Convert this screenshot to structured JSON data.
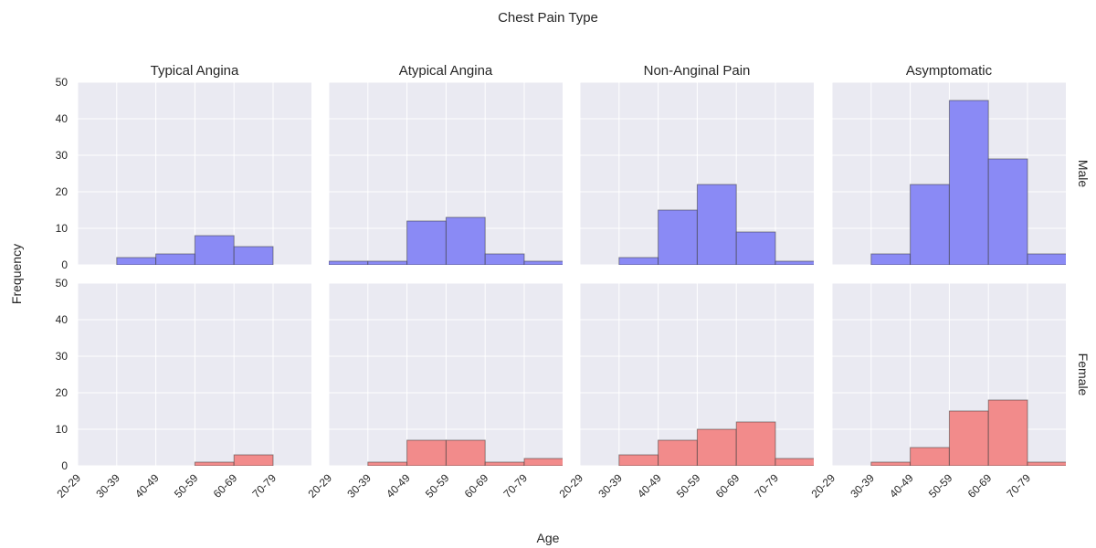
{
  "chart_data": {
    "type": "bar",
    "title": "Chest Pain Type",
    "xlabel": "Age",
    "ylabel": "Frequency",
    "categories": [
      "20-29",
      "30-39",
      "40-49",
      "50-59",
      "60-69",
      "70-79"
    ],
    "xtick_labels": [
      "20-29",
      "30-39",
      "40-49",
      "50-59",
      "60-69",
      "70-79"
    ],
    "ylim": [
      0,
      50
    ],
    "yticks": [
      0,
      10,
      20,
      30,
      40,
      50
    ],
    "grid": true,
    "columns": [
      "Typical Angina",
      "Atypical Angina",
      "Non-Anginal Pain",
      "Asymptomatic"
    ],
    "rows": [
      {
        "label": "Male",
        "color": "#8a8af5"
      },
      {
        "label": "Female",
        "color": "#f28b8b"
      }
    ],
    "panels": [
      {
        "column": "Typical Angina",
        "row": "Male",
        "values": [
          0,
          2,
          3,
          8,
          5,
          0
        ]
      },
      {
        "column": "Atypical Angina",
        "row": "Male",
        "values": [
          1,
          1,
          12,
          13,
          3,
          1
        ]
      },
      {
        "column": "Non-Anginal Pain",
        "row": "Male",
        "values": [
          0,
          2,
          15,
          22,
          9,
          1
        ]
      },
      {
        "column": "Asymptomatic",
        "row": "Male",
        "values": [
          0,
          3,
          22,
          45,
          29,
          3
        ]
      },
      {
        "column": "Typical Angina",
        "row": "Female",
        "values": [
          0,
          0,
          0,
          1,
          3,
          0
        ]
      },
      {
        "column": "Atypical Angina",
        "row": "Female",
        "values": [
          0,
          1,
          7,
          7,
          1,
          2
        ]
      },
      {
        "column": "Non-Anginal Pain",
        "row": "Female",
        "values": [
          0,
          3,
          7,
          10,
          12,
          2
        ]
      },
      {
        "column": "Asymptomatic",
        "row": "Female",
        "values": [
          0,
          1,
          5,
          15,
          18,
          1
        ]
      }
    ]
  }
}
